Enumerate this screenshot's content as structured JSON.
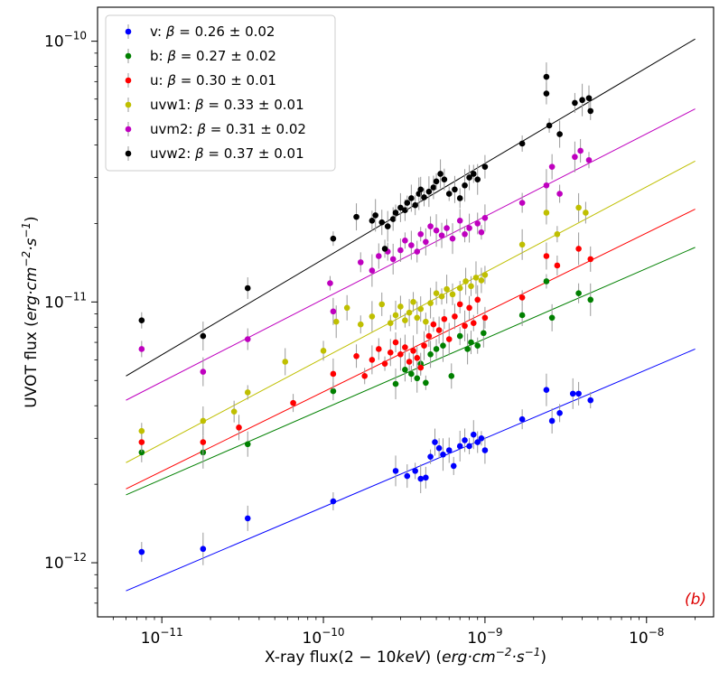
{
  "chart_data": {
    "type": "scatter",
    "title": "",
    "xlabel_parts": [
      "X-ray flux(2 − 10",
      "keV",
      ") (",
      "erg·cm",
      "−2",
      "·s",
      "−1",
      ")"
    ],
    "ylabel_parts": [
      "UVOT flux (",
      "erg·cm",
      "−2",
      "·s",
      "−1",
      ")"
    ],
    "xscale": "log",
    "yscale": "log",
    "xlim": [
      4e-12,
      2.6e-08
    ],
    "ylim": [
      6.2e-13,
      1.35e-10
    ],
    "xticks": [
      {
        "value": 1e-11,
        "base": "10",
        "exp": "−11"
      },
      {
        "value": 1e-10,
        "base": "10",
        "exp": "−10"
      },
      {
        "value": 1e-09,
        "base": "10",
        "exp": "−9"
      },
      {
        "value": 1e-08,
        "base": "10",
        "exp": "−8"
      }
    ],
    "yticks": [
      {
        "value": 1e-12,
        "base": "10",
        "exp": "−12"
      },
      {
        "value": 1e-11,
        "base": "10",
        "exp": "−11"
      },
      {
        "value": 1e-10,
        "base": "10",
        "exp": "−10"
      }
    ],
    "legend_position": "top-left",
    "panel_label": "(b)",
    "panel_label_color": "#dd0000",
    "series": [
      {
        "name": "v",
        "beta_text": "β = 0.26 ± 0.02",
        "color": "#0000ff",
        "fit_x": [
          6e-12,
          2e-08
        ],
        "fit_y": [
          7.8e-13,
          6.6e-12
        ],
        "points": [
          [
            7.5e-12,
            1.1e-12
          ],
          [
            1.8e-11,
            1.13e-12
          ],
          [
            3.4e-11,
            1.48e-12
          ],
          [
            1.15e-10,
            1.72e-12
          ],
          [
            2.8e-10,
            2.25e-12
          ],
          [
            3.3e-10,
            2.15e-12
          ],
          [
            3.7e-10,
            2.25e-12
          ],
          [
            4e-10,
            2.1e-12
          ],
          [
            4.3e-10,
            2.12e-12
          ],
          [
            4.6e-10,
            2.55e-12
          ],
          [
            4.9e-10,
            2.9e-12
          ],
          [
            5.2e-10,
            2.75e-12
          ],
          [
            5.5e-10,
            2.6e-12
          ],
          [
            6e-10,
            2.7e-12
          ],
          [
            6.4e-10,
            2.35e-12
          ],
          [
            7e-10,
            2.8e-12
          ],
          [
            7.5e-10,
            2.95e-12
          ],
          [
            8e-10,
            2.8e-12
          ],
          [
            8.5e-10,
            3.1e-12
          ],
          [
            9e-10,
            2.9e-12
          ],
          [
            9.5e-10,
            3e-12
          ],
          [
            1e-09,
            2.7e-12
          ],
          [
            1.7e-09,
            3.55e-12
          ],
          [
            2.4e-09,
            4.6e-12
          ],
          [
            2.6e-09,
            3.5e-12
          ],
          [
            2.9e-09,
            3.75e-12
          ],
          [
            3.5e-09,
            4.45e-12
          ],
          [
            3.8e-09,
            4.45e-12
          ],
          [
            4.5e-09,
            4.2e-12
          ]
        ]
      },
      {
        "name": "b",
        "beta_text": "β = 0.27 ± 0.02",
        "color": "#008000",
        "fit_x": [
          6e-12,
          2e-08
        ],
        "fit_y": [
          1.82e-12,
          1.62e-11
        ],
        "points": [
          [
            7.5e-12,
            2.65e-12
          ],
          [
            1.8e-11,
            2.65e-12
          ],
          [
            3.4e-11,
            2.85e-12
          ],
          [
            1.15e-10,
            4.55e-12
          ],
          [
            2.8e-10,
            4.85e-12
          ],
          [
            3.2e-10,
            5.5e-12
          ],
          [
            3.5e-10,
            5.3e-12
          ],
          [
            3.8e-10,
            5.1e-12
          ],
          [
            4e-10,
            5.8e-12
          ],
          [
            4.3e-10,
            4.9e-12
          ],
          [
            4.6e-10,
            6.3e-12
          ],
          [
            5e-10,
            6.6e-12
          ],
          [
            5.5e-10,
            6.8e-12
          ],
          [
            6.2e-10,
            5.2e-12
          ],
          [
            7e-10,
            7.4e-12
          ],
          [
            7.8e-10,
            6.6e-12
          ],
          [
            8.2e-10,
            7e-12
          ],
          [
            9e-10,
            6.8e-12
          ],
          [
            9.8e-10,
            7.6e-12
          ],
          [
            1.7e-09,
            8.9e-12
          ],
          [
            2.4e-09,
            1.2e-11
          ],
          [
            2.6e-09,
            8.7e-12
          ],
          [
            3.8e-09,
            1.08e-11
          ],
          [
            4.5e-09,
            1.02e-11
          ]
        ]
      },
      {
        "name": "u",
        "beta_text": "β = 0.30 ± 0.01",
        "color": "#ff0000",
        "fit_x": [
          6e-12,
          2e-08
        ],
        "fit_y": [
          1.92e-12,
          2.27e-11
        ],
        "points": [
          [
            7.5e-12,
            2.9e-12
          ],
          [
            1.8e-11,
            2.9e-12
          ],
          [
            3e-11,
            3.3e-12
          ],
          [
            6.5e-11,
            4.1e-12
          ],
          [
            1.15e-10,
            5.3e-12
          ],
          [
            1.6e-10,
            6.2e-12
          ],
          [
            1.8e-10,
            5.2e-12
          ],
          [
            2e-10,
            6e-12
          ],
          [
            2.2e-10,
            6.6e-12
          ],
          [
            2.4e-10,
            5.8e-12
          ],
          [
            2.6e-10,
            6.4e-12
          ],
          [
            2.8e-10,
            7e-12
          ],
          [
            3e-10,
            6.3e-12
          ],
          [
            3.2e-10,
            6.7e-12
          ],
          [
            3.4e-10,
            5.9e-12
          ],
          [
            3.6e-10,
            6.5e-12
          ],
          [
            3.8e-10,
            6.1e-12
          ],
          [
            4e-10,
            5.6e-12
          ],
          [
            4.2e-10,
            6.8e-12
          ],
          [
            4.5e-10,
            7.4e-12
          ],
          [
            4.8e-10,
            8.2e-12
          ],
          [
            5.2e-10,
            7.8e-12
          ],
          [
            5.6e-10,
            8.6e-12
          ],
          [
            6e-10,
            7.2e-12
          ],
          [
            6.5e-10,
            8.8e-12
          ],
          [
            7e-10,
            9.8e-12
          ],
          [
            7.5e-10,
            8.1e-12
          ],
          [
            8e-10,
            9.5e-12
          ],
          [
            8.5e-10,
            8.3e-12
          ],
          [
            9e-10,
            1.02e-11
          ],
          [
            1e-09,
            8.7e-12
          ],
          [
            1.7e-09,
            1.04e-11
          ],
          [
            2.4e-09,
            1.5e-11
          ],
          [
            2.8e-09,
            1.38e-11
          ],
          [
            3.8e-09,
            1.6e-11
          ],
          [
            4.5e-09,
            1.46e-11
          ]
        ]
      },
      {
        "name": "uvw1",
        "beta_text": "β = 0.33 ± 0.01",
        "color": "#bfbf00",
        "fit_x": [
          6e-12,
          2e-08
        ],
        "fit_y": [
          2.42e-12,
          3.47e-11
        ],
        "points": [
          [
            7.5e-12,
            3.2e-12
          ],
          [
            1.8e-11,
            3.5e-12
          ],
          [
            2.8e-11,
            3.8e-12
          ],
          [
            3.4e-11,
            4.5e-12
          ],
          [
            5.8e-11,
            5.9e-12
          ],
          [
            1e-10,
            6.5e-12
          ],
          [
            1.2e-10,
            8.4e-12
          ],
          [
            1.4e-10,
            9.5e-12
          ],
          [
            1.7e-10,
            8.2e-12
          ],
          [
            2e-10,
            8.8e-12
          ],
          [
            2.3e-10,
            9.8e-12
          ],
          [
            2.6e-10,
            8.3e-12
          ],
          [
            2.8e-10,
            8.9e-12
          ],
          [
            3e-10,
            9.6e-12
          ],
          [
            3.2e-10,
            8.5e-12
          ],
          [
            3.4e-10,
            9.1e-12
          ],
          [
            3.6e-10,
            1e-11
          ],
          [
            3.8e-10,
            8.7e-12
          ],
          [
            4e-10,
            9.4e-12
          ],
          [
            4.3e-10,
            8.4e-12
          ],
          [
            4.6e-10,
            9.9e-12
          ],
          [
            5e-10,
            1.08e-11
          ],
          [
            5.4e-10,
            1.05e-11
          ],
          [
            5.8e-10,
            1.12e-11
          ],
          [
            6.3e-10,
            1.07e-11
          ],
          [
            7e-10,
            1.13e-11
          ],
          [
            7.6e-10,
            1.2e-11
          ],
          [
            8.2e-10,
            1.15e-11
          ],
          [
            8.8e-10,
            1.24e-11
          ],
          [
            9.5e-10,
            1.21e-11
          ],
          [
            1e-09,
            1.27e-11
          ],
          [
            1.7e-09,
            1.66e-11
          ],
          [
            2.4e-09,
            2.2e-11
          ],
          [
            2.8e-09,
            1.82e-11
          ],
          [
            3.8e-09,
            2.3e-11
          ],
          [
            4.2e-09,
            2.2e-11
          ]
        ]
      },
      {
        "name": "uvm2",
        "beta_text": "β = 0.31 ± 0.02",
        "color": "#bf00bf",
        "fit_x": [
          6e-12,
          2e-08
        ],
        "fit_y": [
          4.2e-12,
          5.5e-11
        ],
        "points": [
          [
            7.5e-12,
            6.6e-12
          ],
          [
            1.8e-11,
            5.4e-12
          ],
          [
            3.4e-11,
            7.2e-12
          ],
          [
            1.1e-10,
            1.18e-11
          ],
          [
            1.15e-10,
            9.2e-12
          ],
          [
            1.7e-10,
            1.42e-11
          ],
          [
            2e-10,
            1.32e-11
          ],
          [
            2.2e-10,
            1.5e-11
          ],
          [
            2.5e-10,
            1.56e-11
          ],
          [
            2.7e-10,
            1.46e-11
          ],
          [
            3e-10,
            1.58e-11
          ],
          [
            3.2e-10,
            1.72e-11
          ],
          [
            3.5e-10,
            1.65e-11
          ],
          [
            3.8e-10,
            1.56e-11
          ],
          [
            4e-10,
            1.82e-11
          ],
          [
            4.3e-10,
            1.7e-11
          ],
          [
            4.6e-10,
            1.95e-11
          ],
          [
            5e-10,
            1.88e-11
          ],
          [
            5.4e-10,
            1.8e-11
          ],
          [
            5.8e-10,
            1.92e-11
          ],
          [
            6.3e-10,
            1.75e-11
          ],
          [
            7e-10,
            2.05e-11
          ],
          [
            7.5e-10,
            1.82e-11
          ],
          [
            8e-10,
            1.92e-11
          ],
          [
            9e-10,
            2e-11
          ],
          [
            9.5e-10,
            1.85e-11
          ],
          [
            1e-09,
            2.1e-11
          ],
          [
            1.7e-09,
            2.4e-11
          ],
          [
            2.4e-09,
            2.8e-11
          ],
          [
            2.6e-09,
            3.3e-11
          ],
          [
            2.9e-09,
            2.6e-11
          ],
          [
            3.6e-09,
            3.6e-11
          ],
          [
            3.9e-09,
            3.8e-11
          ],
          [
            4.4e-09,
            3.5e-11
          ]
        ]
      },
      {
        "name": "uvw2",
        "beta_text": "β = 0.37 ± 0.01",
        "color": "#000000",
        "fit_x": [
          6e-12,
          2e-08
        ],
        "fit_y": [
          5.2e-12,
          1.02e-10
        ],
        "points": [
          [
            7.5e-12,
            8.5e-12
          ],
          [
            1.8e-11,
            7.4e-12
          ],
          [
            3.4e-11,
            1.13e-11
          ],
          [
            1.15e-10,
            1.75e-11
          ],
          [
            1.6e-10,
            2.12e-11
          ],
          [
            2e-10,
            2.05e-11
          ],
          [
            2.1e-10,
            2.15e-11
          ],
          [
            2.3e-10,
            2.02e-11
          ],
          [
            2.4e-10,
            1.6e-11
          ],
          [
            2.5e-10,
            1.95e-11
          ],
          [
            2.7e-10,
            2.08e-11
          ],
          [
            2.8e-10,
            2.2e-11
          ],
          [
            3e-10,
            2.3e-11
          ],
          [
            3.2e-10,
            2.25e-11
          ],
          [
            3.3e-10,
            2.4e-11
          ],
          [
            3.5e-10,
            2.5e-11
          ],
          [
            3.7e-10,
            2.35e-11
          ],
          [
            3.9e-10,
            2.6e-11
          ],
          [
            4e-10,
            2.7e-11
          ],
          [
            4.2e-10,
            2.52e-11
          ],
          [
            4.5e-10,
            2.65e-11
          ],
          [
            4.8e-10,
            2.75e-11
          ],
          [
            5e-10,
            2.9e-11
          ],
          [
            5.3e-10,
            3.1e-11
          ],
          [
            5.6e-10,
            2.95e-11
          ],
          [
            6e-10,
            2.6e-11
          ],
          [
            6.5e-10,
            2.7e-11
          ],
          [
            7e-10,
            2.5e-11
          ],
          [
            7.5e-10,
            2.8e-11
          ],
          [
            8e-10,
            3e-11
          ],
          [
            8.5e-10,
            3.1e-11
          ],
          [
            9e-10,
            2.95e-11
          ],
          [
            1e-09,
            3.3e-11
          ],
          [
            1.7e-09,
            4.05e-11
          ],
          [
            2.4e-09,
            7.3e-11
          ],
          [
            2.4e-09,
            6.3e-11
          ],
          [
            2.5e-09,
            4.75e-11
          ],
          [
            2.9e-09,
            4.4e-11
          ],
          [
            3.6e-09,
            5.8e-11
          ],
          [
            4e-09,
            5.95e-11
          ],
          [
            4.4e-09,
            6.05e-11
          ],
          [
            4.5e-09,
            5.4e-11
          ]
        ]
      }
    ]
  }
}
